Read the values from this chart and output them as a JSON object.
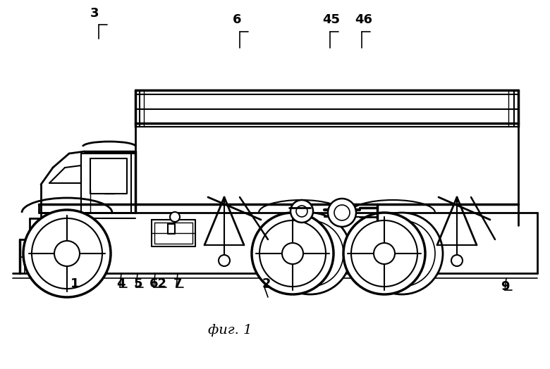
{
  "background": "#ffffff",
  "line_color": "#000000",
  "fig_w": 780,
  "fig_h": 524
}
